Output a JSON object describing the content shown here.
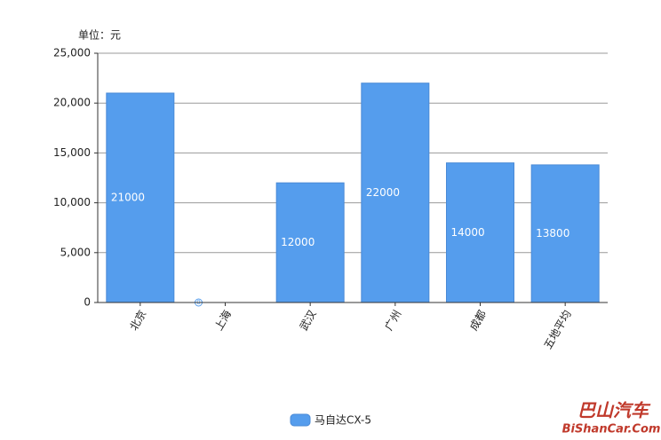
{
  "chart_data": {
    "type": "bar",
    "unit_label": "单位：元",
    "categories": [
      "北京",
      "上海",
      "武汉",
      "广州",
      "成都",
      "五地平均"
    ],
    "series": [
      {
        "name": "马自达CX-5",
        "color": "#559ded",
        "values": [
          21000,
          0,
          12000,
          22000,
          14000,
          13800
        ]
      }
    ],
    "ylim": [
      0,
      25000
    ],
    "yticks": [
      0,
      {
        "value": 5000,
        "label": "5,000"
      },
      {
        "value": 10000,
        "label": "10,000"
      },
      {
        "value": 15000,
        "label": "15,000"
      },
      {
        "value": 20000,
        "label": "20,000"
      },
      {
        "value": 25000,
        "label": "25,000"
      }
    ],
    "grid": true,
    "legend": "bottom",
    "watermark": [
      "巴山汽车",
      "BiShanCar.Com"
    ]
  }
}
